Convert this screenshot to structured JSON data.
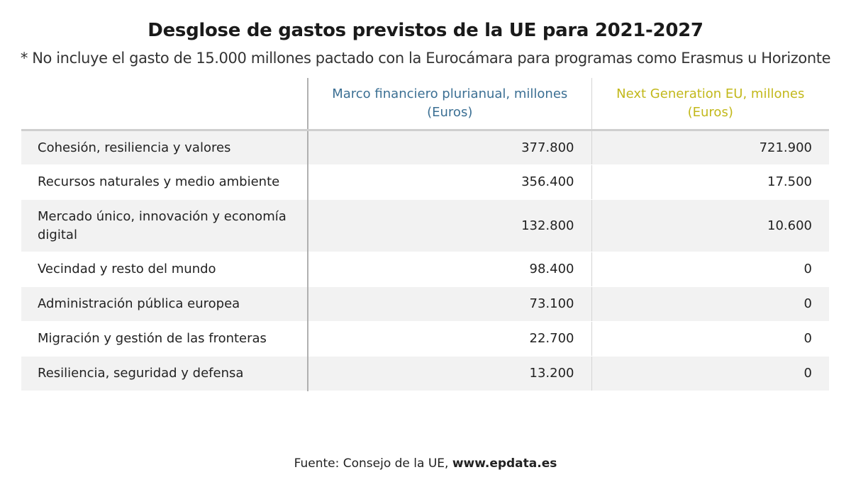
{
  "chart_data": {
    "type": "table",
    "title": "Desglose de gastos previstos de la UE para 2021-2027",
    "subtitle": "* No incluye el gasto de 15.000 millones pactado con la Eurocámara para programas como Erasmus u Horizonte",
    "columns": [
      "",
      "Marco financiero plurianual, millones (Euros)",
      "Next Generation EU, millones (Euros)"
    ],
    "rows": [
      {
        "label": "Cohesión, resiliencia y valores",
        "marco": "377.800",
        "nextgen": "721.900"
      },
      {
        "label": "Recursos naturales y medio ambiente",
        "marco": "356.400",
        "nextgen": "17.500"
      },
      {
        "label": "Mercado único, innovación y economía digital",
        "marco": "132.800",
        "nextgen": "10.600"
      },
      {
        "label": "Vecindad y resto del mundo",
        "marco": "98.400",
        "nextgen": "0"
      },
      {
        "label": "Administración pública europea",
        "marco": "73.100",
        "nextgen": "0"
      },
      {
        "label": "Migración y gestión de las fronteras",
        "marco": "22.700",
        "nextgen": "0"
      },
      {
        "label": "Resiliencia, seguridad y defensa",
        "marco": "13.200",
        "nextgen": "0"
      }
    ],
    "colors": {
      "marco_header": "#3b6f93",
      "nextgen_header": "#c2b81a",
      "stripe": "#f2f2f2"
    }
  },
  "footer": {
    "source_prefix": "Fuente: Consejo de la UE, ",
    "source_site": "www.epdata.es"
  }
}
